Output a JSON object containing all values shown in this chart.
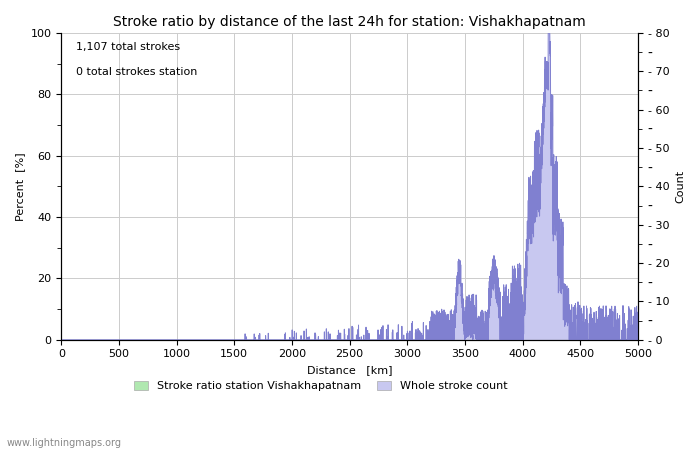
{
  "title": "Stroke ratio by distance of the last 24h for station: Vishakhapatnam",
  "annotation_line1": "1,107 total strokes",
  "annotation_line2": "0 total strokes station",
  "xlabel": "Distance   [km]",
  "ylabel_left": "Percent  [%]",
  "ylabel_right": "Count",
  "xlim": [
    0,
    5000
  ],
  "ylim_left": [
    0,
    100
  ],
  "ylim_right": [
    0,
    80
  ],
  "x_ticks": [
    0,
    500,
    1000,
    1500,
    2000,
    2500,
    3000,
    3500,
    4000,
    4500,
    5000
  ],
  "y_ticks_left_major": [
    0,
    20,
    40,
    60,
    80,
    100
  ],
  "y_ticks_left_minor": [
    10,
    30,
    50,
    70,
    90
  ],
  "y_ticks_right_major": [
    0,
    10,
    20,
    30,
    40,
    50,
    60,
    70,
    80
  ],
  "y_ticks_right_minor": [
    5,
    15,
    25,
    35,
    45,
    55,
    65,
    75
  ],
  "background_color": "#ffffff",
  "plot_bg_color": "#ffffff",
  "grid_color": "#cccccc",
  "line_color": "#8080d0",
  "fill_color": "#c8c8f0",
  "legend_label_left": "Stroke ratio station Vishakhapatnam",
  "legend_label_right": "Whole stroke count",
  "legend_fill_left": "#b0e8b0",
  "legend_fill_right": "#c8c8f0",
  "watermark": "www.lightningmaps.org",
  "title_fontsize": 10,
  "label_fontsize": 8,
  "tick_fontsize": 8,
  "annotation_fontsize": 8
}
